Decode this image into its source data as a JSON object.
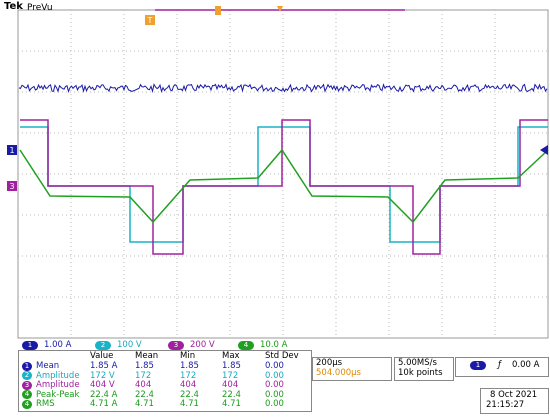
{
  "header": {
    "brand": "Tek",
    "mode": "PreVu"
  },
  "markers": {
    "trigger": "T",
    "ch1": "1",
    "ch3": "3"
  },
  "channels": [
    {
      "num": "1",
      "scale": "1.00 A"
    },
    {
      "num": "2",
      "scale": "100 V"
    },
    {
      "num": "3",
      "scale": "200 V"
    },
    {
      "num": "4",
      "scale": "10.0 A"
    }
  ],
  "measurements": {
    "headers": [
      "Value",
      "Mean",
      "Min",
      "Max",
      "Std Dev"
    ],
    "rows": [
      [
        "1",
        "Mean",
        "1.85 A",
        "1.85",
        "1.85",
        "1.85",
        "0.00"
      ],
      [
        "2",
        "Amplitude",
        "172 V",
        "172",
        "172",
        "172",
        "0.00"
      ],
      [
        "3",
        "Amplitude",
        "404 V",
        "404",
        "404",
        "404",
        "0.00"
      ],
      [
        "4",
        "Peak-Peak",
        "22.4 A",
        "22.4",
        "22.4",
        "22.4",
        "0.00"
      ],
      [
        "4",
        "RMS",
        "4.71 A",
        "4.71",
        "4.71",
        "4.71",
        "0.00"
      ]
    ]
  },
  "timebase": {
    "scale": "200µs",
    "position": "504.000µs",
    "rate": "5.00MS/s",
    "points": "10k points"
  },
  "trigger": {
    "channel": "1",
    "level": "0.00 A"
  },
  "date": "8 Oct 2021",
  "time": "21:15:27"
}
